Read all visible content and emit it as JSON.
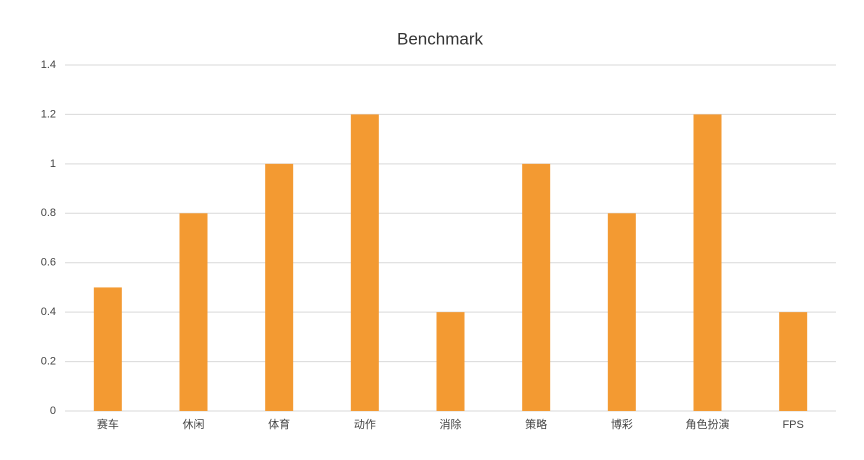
{
  "chart_data": {
    "type": "bar",
    "title": "Benchmark",
    "categories": [
      "赛车",
      "休闲",
      "体育",
      "动作",
      "消除",
      "策略",
      "博彩",
      "角色扮演",
      "FPS"
    ],
    "values": [
      0.5,
      0.8,
      1,
      1.2,
      0.4,
      1,
      0.8,
      1.2,
      0.4
    ],
    "color": "#f39a32",
    "ylim": [
      0,
      1.4
    ],
    "yticks": [
      0,
      0.2,
      0.4,
      0.6,
      0.8,
      1,
      1.2,
      1.4
    ],
    "grid": true
  }
}
